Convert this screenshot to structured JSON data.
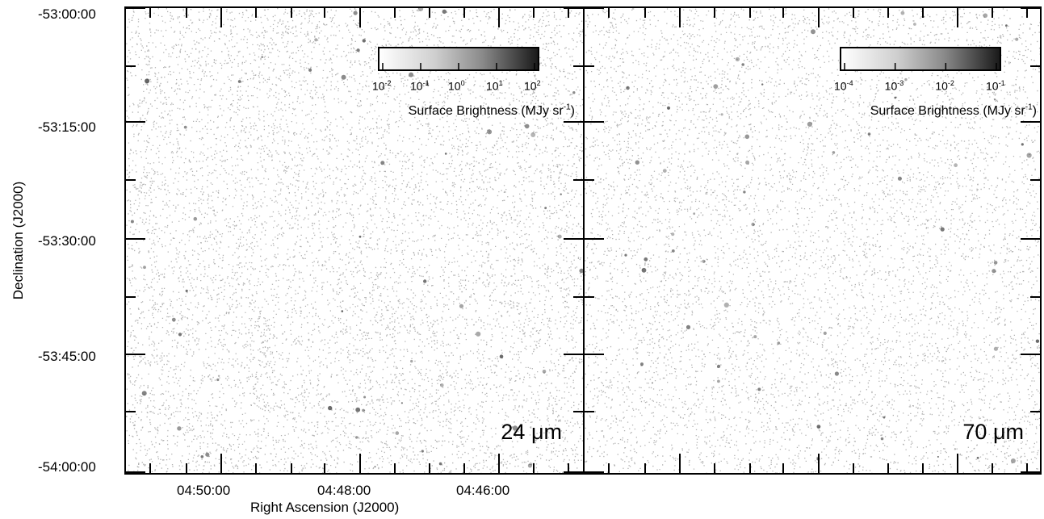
{
  "panels": [
    {
      "wavelength": "24 μm",
      "colorbar": {
        "tick_labels": [
          "10-2",
          "10-1",
          "100",
          "101",
          "102"
        ],
        "title": "Surface Brightness (MJy sr-1)"
      }
    },
    {
      "wavelength": "70 μm",
      "colorbar": {
        "tick_labels": [
          "10-4",
          "10-3",
          "10-2",
          "10-1"
        ],
        "title": "Surface Brightness (MJy sr-1)"
      }
    }
  ],
  "y_axis": {
    "title": "Declination (J2000)",
    "tick_labels": [
      "-53:00:00",
      "-53:15:00",
      "-53:30:00",
      "-53:45:00",
      "-54:00:00"
    ]
  },
  "x_axis": {
    "title": "Right Ascension (J2000)",
    "tick_labels": [
      "04:50:00",
      "04:48:00",
      "04:46:00"
    ]
  },
  "colors": {
    "background": "#ffffff",
    "ink": "#000000",
    "noise": "#555555"
  }
}
